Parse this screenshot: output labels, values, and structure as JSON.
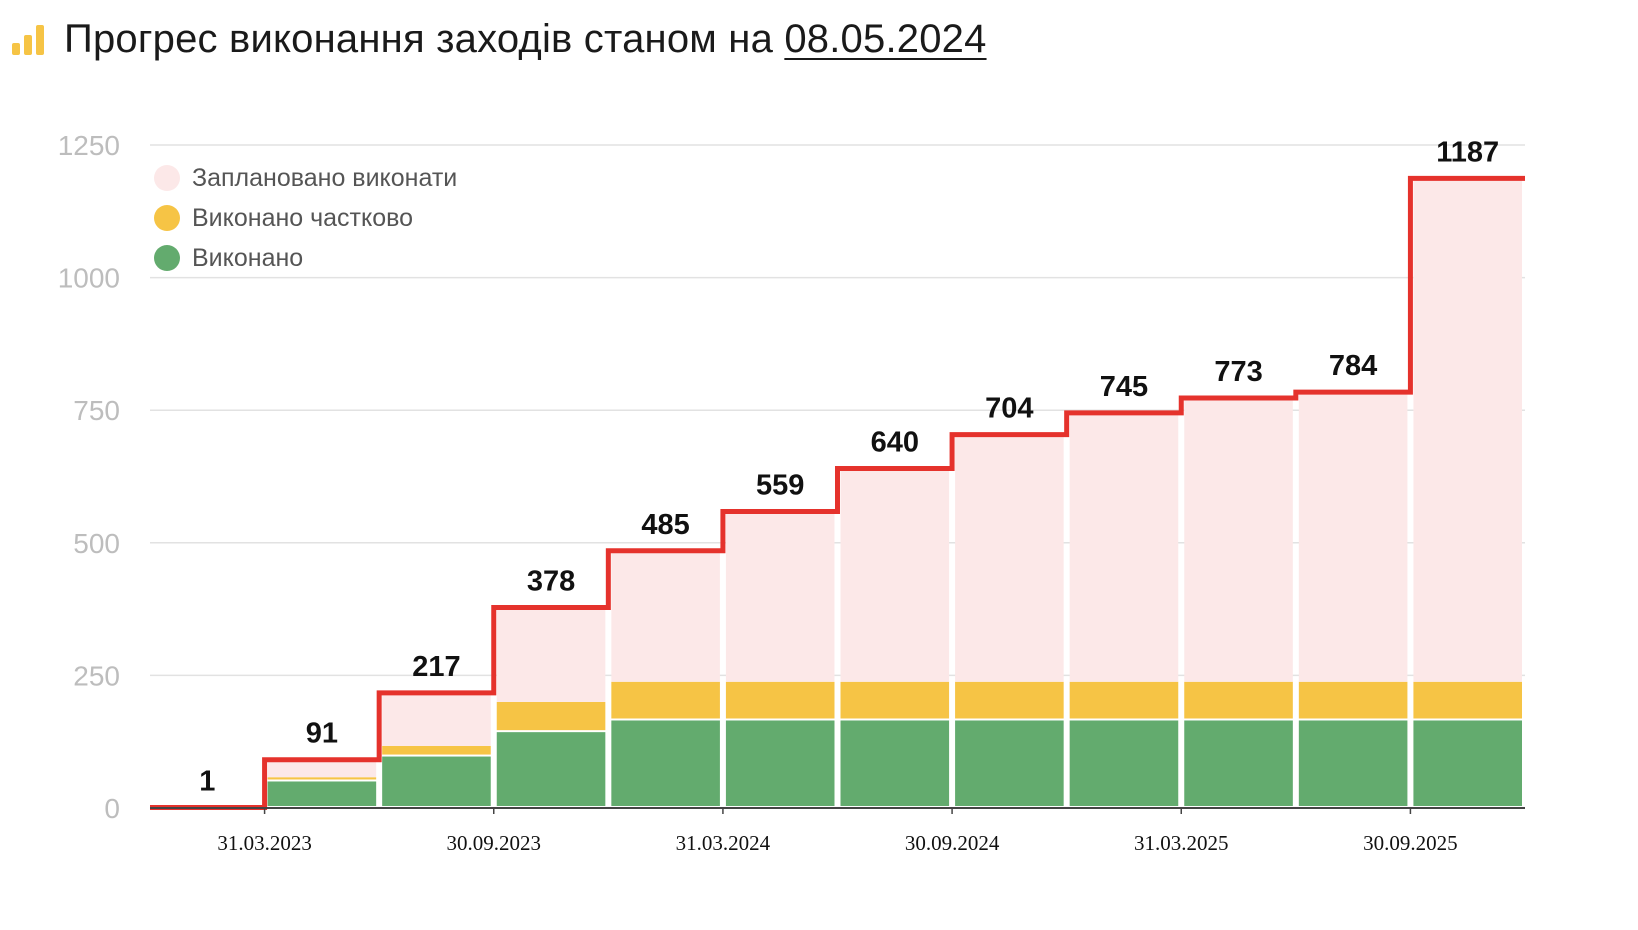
{
  "title": {
    "text": "Прогрес виконання заходів станом на",
    "date": "08.05.2024",
    "icon": "bar-chart-icon"
  },
  "legend": {
    "items": [
      {
        "label": "Заплановано виконати",
        "color": "#fce8e8"
      },
      {
        "label": "Виконано частково",
        "color": "#f6c445"
      },
      {
        "label": "Виконано",
        "color": "#63ab6e"
      }
    ]
  },
  "colors": {
    "planned": "#fce8e8",
    "partial": "#f6c445",
    "done": "#63ab6e",
    "step_line": "#e5322c",
    "grid": "#e2e2e2",
    "axis": "#444444",
    "y_tick_text": "#bdbdbd"
  },
  "chart_data": {
    "type": "bar",
    "stacked": true,
    "ylim": [
      0,
      1250
    ],
    "yticks": [
      0,
      250,
      500,
      750,
      1000,
      1250
    ],
    "x_tick_labels": [
      "31.03.2023",
      "30.09.2023",
      "31.03.2024",
      "30.09.2024",
      "31.03.2025",
      "30.09.2025"
    ],
    "planned_totals": [
      1,
      91,
      217,
      378,
      485,
      559,
      640,
      704,
      745,
      773,
      784,
      1187
    ],
    "series": [
      {
        "name": "Виконано",
        "values": [
          0,
          50,
          97,
          143,
          165,
          165,
          165,
          165,
          165,
          165,
          165,
          165
        ]
      },
      {
        "name": "Виконано частково",
        "values": [
          0,
          8,
          20,
          57,
          73,
          73,
          73,
          73,
          73,
          73,
          73,
          73
        ]
      },
      {
        "name": "Заплановано виконати",
        "values": [
          1,
          33,
          100,
          178,
          247,
          321,
          402,
          466,
          507,
          535,
          546,
          949
        ]
      }
    ],
    "grid": true,
    "legend_position": "top-left"
  }
}
